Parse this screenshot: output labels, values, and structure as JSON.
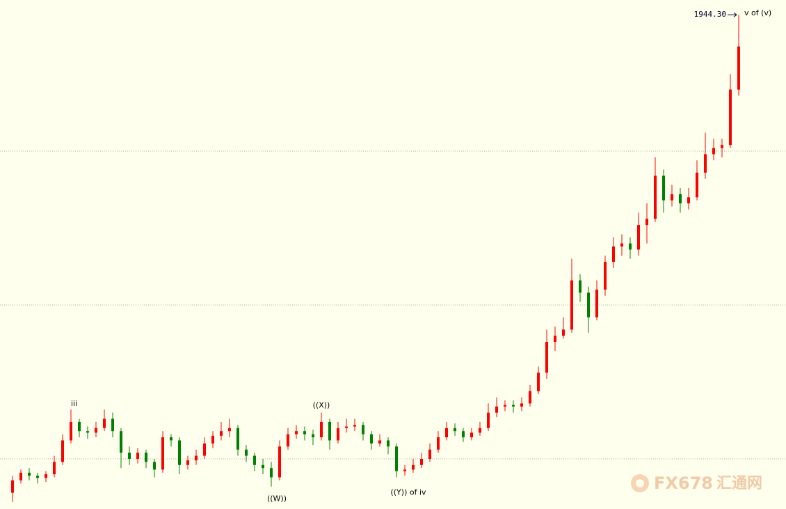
{
  "chart_data": {
    "type": "candlestick",
    "ylim": [
      1783.7,
      1949.1
    ],
    "grid_lines": [
      1800,
      1850,
      1900
    ],
    "up_color": "#ff0000",
    "down_color": "#008000",
    "ohlc": [
      [
        1789,
        1794.5,
        1786,
        1793
      ],
      [
        1793,
        1796.5,
        1792,
        1795.5
      ],
      [
        1795.5,
        1797,
        1793,
        1794.5
      ],
      [
        1794.5,
        1795.5,
        1792,
        1793.8
      ],
      [
        1793.8,
        1796,
        1792.5,
        1795
      ],
      [
        1795,
        1801,
        1794,
        1799
      ],
      [
        1799,
        1808,
        1798,
        1806
      ],
      [
        1806,
        1816,
        1805,
        1812
      ],
      [
        1812,
        1813,
        1807,
        1809
      ],
      [
        1809,
        1810.5,
        1806.5,
        1808.5
      ],
      [
        1808.5,
        1812,
        1807,
        1810
      ],
      [
        1810,
        1816,
        1809,
        1813
      ],
      [
        1813,
        1815,
        1807,
        1809
      ],
      [
        1809,
        1810,
        1797,
        1802
      ],
      [
        1802,
        1804,
        1798,
        1800
      ],
      [
        1800,
        1803.5,
        1798.5,
        1802
      ],
      [
        1802,
        1803,
        1797,
        1799
      ],
      [
        1799,
        1800,
        1794,
        1796.5
      ],
      [
        1796.5,
        1809,
        1795.5,
        1807
      ],
      [
        1807,
        1808,
        1804,
        1806
      ],
      [
        1806,
        1807,
        1795,
        1798
      ],
      [
        1798,
        1801,
        1796.5,
        1799.5
      ],
      [
        1799.5,
        1803,
        1798,
        1801
      ],
      [
        1801,
        1807,
        1800,
        1805
      ],
      [
        1805,
        1809,
        1803.5,
        1807.5
      ],
      [
        1807.5,
        1812,
        1806,
        1809
      ],
      [
        1809,
        1813,
        1807,
        1810
      ],
      [
        1810,
        1811,
        1801,
        1803
      ],
      [
        1803,
        1804.5,
        1799,
        1801
      ],
      [
        1801,
        1802,
        1796,
        1798
      ],
      [
        1798,
        1800,
        1795,
        1797
      ],
      [
        1797,
        1799,
        1791,
        1794
      ],
      [
        1794,
        1806,
        1793,
        1804
      ],
      [
        1804,
        1810,
        1803,
        1808
      ],
      [
        1808,
        1811,
        1806.5,
        1809
      ],
      [
        1809,
        1810.5,
        1806,
        1808
      ],
      [
        1808,
        1809.5,
        1804.5,
        1807
      ],
      [
        1807,
        1815,
        1806,
        1812
      ],
      [
        1812,
        1813,
        1803,
        1806
      ],
      [
        1806,
        1812,
        1805,
        1810
      ],
      [
        1810,
        1813,
        1808.5,
        1810.5
      ],
      [
        1810.5,
        1813,
        1809,
        1811
      ],
      [
        1811,
        1812,
        1806,
        1808
      ],
      [
        1808,
        1809,
        1803,
        1805
      ],
      [
        1805,
        1808,
        1804,
        1806
      ],
      [
        1806,
        1807,
        1801.5,
        1804
      ],
      [
        1804,
        1805,
        1794,
        1796
      ],
      [
        1796,
        1798,
        1794.5,
        1796.5
      ],
      [
        1796.5,
        1800,
        1795.5,
        1798
      ],
      [
        1798,
        1802,
        1797,
        1800
      ],
      [
        1800,
        1805,
        1799,
        1803
      ],
      [
        1803,
        1809,
        1802,
        1807
      ],
      [
        1807,
        1812,
        1806,
        1810
      ],
      [
        1810,
        1811.5,
        1807.5,
        1809
      ],
      [
        1809,
        1810,
        1805.5,
        1807
      ],
      [
        1807,
        1810,
        1806,
        1808.5
      ],
      [
        1808.5,
        1812,
        1807.5,
        1810
      ],
      [
        1810,
        1818,
        1809,
        1815
      ],
      [
        1815,
        1820,
        1813.5,
        1817
      ],
      [
        1817,
        1819,
        1815.5,
        1817.5
      ],
      [
        1817.5,
        1819,
        1815,
        1817
      ],
      [
        1817,
        1820,
        1815.5,
        1818
      ],
      [
        1818,
        1824,
        1817,
        1822
      ],
      [
        1822,
        1830,
        1821,
        1828
      ],
      [
        1828,
        1842,
        1826,
        1838
      ],
      [
        1838,
        1843,
        1835,
        1840
      ],
      [
        1840,
        1846,
        1839,
        1842
      ],
      [
        1842,
        1865,
        1841,
        1858
      ],
      [
        1858,
        1860,
        1851,
        1854
      ],
      [
        1854,
        1856,
        1841,
        1846
      ],
      [
        1846,
        1858,
        1845,
        1855
      ],
      [
        1855,
        1866,
        1853,
        1864
      ],
      [
        1864,
        1872,
        1862,
        1869
      ],
      [
        1869,
        1873,
        1866,
        1870
      ],
      [
        1870,
        1872,
        1865,
        1868
      ],
      [
        1868,
        1880,
        1866,
        1876
      ],
      [
        1876,
        1883,
        1870,
        1878
      ],
      [
        1878,
        1898,
        1877,
        1892
      ],
      [
        1892,
        1894,
        1880,
        1884
      ],
      [
        1884,
        1889,
        1882,
        1886
      ],
      [
        1886,
        1888,
        1880,
        1883
      ],
      [
        1883,
        1888,
        1881,
        1885
      ],
      [
        1885,
        1897,
        1884,
        1893
      ],
      [
        1893,
        1906,
        1891,
        1899
      ],
      [
        1899,
        1904,
        1897,
        1901
      ],
      [
        1901,
        1904,
        1898,
        1902
      ],
      [
        1902,
        1925,
        1901,
        1920
      ],
      [
        1920,
        1944.3,
        1918,
        1934
      ]
    ],
    "high_value_label": "1944.30",
    "annotations": [
      "iii",
      "((W))",
      "((X))",
      "((Y)) of iv",
      "v of (v)"
    ],
    "watermark": [
      "FX678",
      "汇通网"
    ]
  }
}
